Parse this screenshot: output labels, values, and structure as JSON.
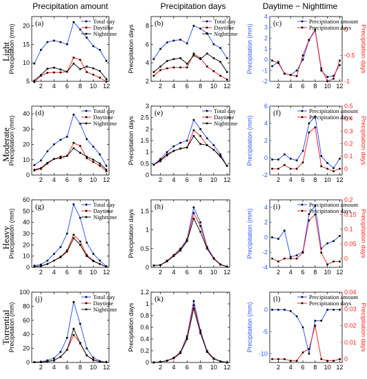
{
  "column_titles": [
    "Precipitation amount",
    "Precipitation days",
    "Daytime − Nighttime"
  ],
  "row_labels": [
    "Light",
    "Moderate",
    "Heavy",
    "Torrential"
  ],
  "colors": {
    "total": "#3355ff",
    "day": "#ff2222",
    "night": "#111111"
  },
  "chart_data": [
    {
      "id": "a",
      "label": "(a)",
      "type": "line",
      "ylabel": "Precipitation (mm)",
      "ylim": [
        5,
        22.5
      ],
      "yticks": [
        5,
        10,
        15,
        20
      ],
      "xticks": [
        2,
        4,
        6,
        8,
        10,
        12
      ],
      "legend": [
        "Total day",
        "Daytime",
        "Nighttime"
      ],
      "series": [
        {
          "name": "Total day",
          "key": "total",
          "values": [
            9.8,
            13.5,
            15.6,
            16.0,
            15.6,
            15.0,
            21.0,
            19.0,
            16.8,
            14.5,
            13.5,
            10.5
          ]
        },
        {
          "name": "Daytime",
          "key": "day",
          "values": [
            4.8,
            6.5,
            7.3,
            7.4,
            7.4,
            7.6,
            11.4,
            10.8,
            7.5,
            6.8,
            6.0,
            4.9
          ]
        },
        {
          "name": "Nighttime",
          "key": "night",
          "values": [
            5.2,
            6.7,
            8.4,
            8.7,
            8.2,
            7.6,
            9.8,
            8.3,
            9.0,
            8.5,
            7.8,
            5.6
          ]
        }
      ]
    },
    {
      "id": "b",
      "label": "(b)",
      "type": "line",
      "ylabel": "Precipitation days",
      "ylim": [
        2,
        9
      ],
      "yticks": [
        2,
        4,
        6,
        8
      ],
      "xticks": [
        2,
        4,
        6,
        8,
        10,
        12
      ],
      "legend": [
        "Total day",
        "Daytime",
        "Nighttime"
      ],
      "series": [
        {
          "name": "Total day",
          "key": "total",
          "values": [
            4.4,
            5.5,
            6.2,
            6.4,
            6.5,
            6.1,
            8.0,
            7.7,
            7.2,
            6.0,
            5.6,
            4.5
          ]
        },
        {
          "name": "Daytime",
          "key": "day",
          "values": [
            2.6,
            3.2,
            3.4,
            3.5,
            3.5,
            3.5,
            5.0,
            4.5,
            3.6,
            3.1,
            2.6,
            2.2
          ]
        },
        {
          "name": "Nighttime",
          "key": "night",
          "values": [
            3.0,
            3.6,
            4.2,
            4.4,
            4.5,
            3.9,
            4.8,
            4.4,
            5.0,
            4.5,
            4.1,
            3.0
          ]
        }
      ]
    },
    {
      "id": "c",
      "label": "(c)",
      "type": "line",
      "dual": true,
      "ylabel": "Precipitation (mm)",
      "ylabel2": "Precipitation days",
      "ylim": [
        -2,
        4
      ],
      "yticks": [
        -2,
        -1,
        0,
        1,
        2,
        3,
        4
      ],
      "ylim2": [
        -1,
        0.25
      ],
      "yticks2": [
        -1,
        -0.5,
        0
      ],
      "xticks": [
        2,
        4,
        6,
        8,
        10,
        12
      ],
      "legend": [
        "Precipitation amount",
        "Precipitation days"
      ],
      "series": [
        {
          "name": "Precipitation amount",
          "key": "total",
          "axis": "left",
          "values": [
            -0.6,
            -0.2,
            -1.3,
            -1.4,
            -1.0,
            0.0,
            1.8,
            2.7,
            -1.0,
            -1.6,
            -1.5,
            -0.5
          ]
        },
        {
          "name": "Precipitation days",
          "key": "day",
          "axis": "right",
          "values": [
            -0.6,
            -0.65,
            -0.85,
            -0.88,
            -0.9,
            -0.5,
            -0.2,
            0.0,
            -0.75,
            -1.0,
            -0.95,
            -0.6
          ]
        }
      ]
    },
    {
      "id": "d",
      "label": "(d)",
      "type": "line",
      "ylabel": "Precipitation (mm)",
      "ylim": [
        0,
        45
      ],
      "yticks": [
        0,
        10,
        20,
        30,
        40
      ],
      "xticks": [
        2,
        4,
        6,
        8,
        10,
        12
      ],
      "legend": [
        "Total day",
        "Daytime",
        "Nighttime"
      ],
      "series": [
        {
          "name": "Total day",
          "key": "total",
          "values": [
            6.5,
            9.5,
            15.5,
            20.0,
            23.0,
            25.0,
            39.5,
            33.5,
            23.5,
            18.5,
            13.5,
            6.0
          ]
        },
        {
          "name": "Daytime",
          "key": "day",
          "values": [
            3.0,
            4.0,
            7.5,
            10.5,
            12.0,
            12.5,
            21.0,
            19.0,
            11.0,
            8.5,
            6.0,
            2.5
          ]
        },
        {
          "name": "Nighttime",
          "key": "night",
          "values": [
            3.5,
            4.5,
            8.0,
            10.5,
            11.0,
            12.5,
            17.5,
            14.5,
            12.0,
            10.0,
            7.5,
            3.5
          ]
        }
      ]
    },
    {
      "id": "e",
      "label": "(e)",
      "type": "line",
      "ylabel": "Precipitation days",
      "ylim": [
        0,
        3
      ],
      "yticks": [
        0,
        0.5,
        1,
        1.5,
        2,
        2.5,
        3
      ],
      "xticks": [
        2,
        4,
        6,
        8,
        10,
        12
      ],
      "legend": [
        "Total day",
        "Daytime",
        "Nighttime"
      ],
      "series": [
        {
          "name": "Total day",
          "key": "total",
          "values": [
            0.45,
            0.7,
            1.0,
            1.25,
            1.4,
            1.5,
            2.4,
            2.0,
            1.6,
            1.3,
            0.9,
            0.4
          ]
        },
        {
          "name": "Daytime",
          "key": "day",
          "values": [
            0.45,
            0.6,
            0.85,
            1.05,
            1.15,
            1.2,
            1.95,
            1.7,
            1.3,
            1.1,
            0.85,
            0.4
          ]
        },
        {
          "name": "Nighttime",
          "key": "night",
          "values": [
            0.45,
            0.65,
            0.9,
            1.05,
            1.15,
            1.2,
            1.7,
            1.35,
            1.3,
            1.1,
            0.8,
            0.4
          ]
        }
      ]
    },
    {
      "id": "f",
      "label": "(f)",
      "type": "line",
      "dual": true,
      "ylabel": "Precipitation (mm)",
      "ylabel2": "Precipitation days",
      "ylim": [
        -2,
        6
      ],
      "yticks": [
        -2,
        0,
        2,
        4,
        6
      ],
      "ylim2": [
        -0.05,
        0.5
      ],
      "yticks2": [
        0,
        0.1,
        0.2,
        0.3,
        0.4,
        0.5
      ],
      "xticks": [
        2,
        4,
        6,
        8,
        10,
        12
      ],
      "legend": [
        "Precipitation amount",
        "Precipitation days"
      ],
      "series": [
        {
          "name": "Precipitation amount",
          "key": "total",
          "axis": "left",
          "values": [
            -0.2,
            -0.2,
            0.4,
            -0.1,
            -0.3,
            0.8,
            4.0,
            4.8,
            0.2,
            -0.6,
            -1.2,
            -0.1
          ]
        },
        {
          "name": "Precipitation days",
          "key": "day",
          "axis": "right",
          "values": [
            0.0,
            0.0,
            0.03,
            0.0,
            0.0,
            0.05,
            0.29,
            0.33,
            0.02,
            0.0,
            -0.02,
            0.0
          ]
        }
      ]
    },
    {
      "id": "g",
      "label": "(g)",
      "type": "line",
      "ylabel": "Precipitation (mm)",
      "ylim": [
        0,
        60
      ],
      "yticks": [
        0,
        10,
        20,
        30,
        40,
        50,
        60
      ],
      "xticks": [
        2,
        4,
        6,
        8,
        10,
        12
      ],
      "legend": [
        "Total day",
        "Daytime",
        "Nighttime"
      ],
      "series": [
        {
          "name": "Total day",
          "key": "total",
          "values": [
            1.5,
            2.5,
            6.0,
            12.0,
            18.0,
            30.0,
            56.0,
            44.0,
            22.0,
            12.0,
            6.0,
            1.0
          ]
        },
        {
          "name": "Daytime",
          "key": "day",
          "values": [
            0.8,
            1.2,
            3.0,
            6.0,
            9.5,
            15.0,
            29.0,
            23.0,
            11.0,
            6.0,
            3.0,
            0.5
          ]
        },
        {
          "name": "Nighttime",
          "key": "night",
          "values": [
            0.8,
            1.2,
            3.0,
            6.0,
            9.0,
            14.0,
            26.0,
            20.0,
            10.0,
            5.5,
            3.0,
            0.5
          ]
        }
      ]
    },
    {
      "id": "h",
      "label": "(h)",
      "type": "line",
      "ylabel": "Precipitation days",
      "ylim": [
        0,
        1.8
      ],
      "yticks": [
        0,
        0.5,
        1,
        1.5
      ],
      "xticks": [
        2,
        4,
        6,
        8,
        10,
        12
      ],
      "legend": [],
      "series": [
        {
          "name": "Total day",
          "key": "total",
          "values": [
            0.05,
            0.06,
            0.18,
            0.33,
            0.5,
            0.75,
            1.6,
            1.2,
            0.55,
            0.25,
            0.08,
            0.02
          ]
        },
        {
          "name": "Daytime",
          "key": "day",
          "values": [
            0.05,
            0.06,
            0.17,
            0.32,
            0.48,
            0.72,
            1.45,
            1.1,
            0.52,
            0.24,
            0.08,
            0.02
          ]
        },
        {
          "name": "Nighttime",
          "key": "night",
          "values": [
            0.05,
            0.06,
            0.16,
            0.3,
            0.45,
            0.7,
            1.3,
            0.95,
            0.5,
            0.23,
            0.07,
            0.02
          ]
        }
      ]
    },
    {
      "id": "i",
      "label": "(i)",
      "type": "line",
      "dual": true,
      "ylabel": "Precipitation (mm)",
      "ylabel2": "Precipitation days",
      "ylim": [
        -4,
        5
      ],
      "yticks": [
        -4,
        -2,
        0,
        2,
        4
      ],
      "ylim2": [
        -0.03,
        0.2
      ],
      "yticks2": [
        0,
        0.05,
        0.1,
        0.15,
        0.2
      ],
      "xticks": [
        2,
        4,
        6,
        8,
        10,
        12
      ],
      "legend": [
        "Precipitation amount",
        "Precipitation days"
      ],
      "series": [
        {
          "name": "Precipitation amount",
          "key": "total",
          "axis": "left",
          "values": [
            0.0,
            -0.2,
            0.9,
            -2.6,
            -2.4,
            -1.9,
            3.1,
            4.2,
            -1.5,
            -0.8,
            -0.5,
            0.2
          ]
        },
        {
          "name": "Precipitation days",
          "key": "day",
          "axis": "right",
          "values": [
            0.0,
            -0.01,
            0.0,
            0.0,
            0.0,
            0.02,
            0.13,
            0.15,
            0.02,
            -0.02,
            -0.01,
            -0.01
          ]
        }
      ]
    },
    {
      "id": "j",
      "label": "(j)",
      "type": "line",
      "ylabel": "Precipitation (mm)",
      "ylim": [
        0,
        100
      ],
      "yticks": [
        0,
        20,
        40,
        60,
        80,
        100
      ],
      "xticks": [
        2,
        4,
        6,
        8,
        10,
        12
      ],
      "legend": [
        "Total day",
        "Daytime",
        "Nighttime"
      ],
      "series": [
        {
          "name": "Total day",
          "key": "total",
          "values": [
            0.5,
            1.0,
            3.0,
            6.0,
            15.0,
            35.0,
            86.0,
            55.0,
            20.0,
            7.0,
            2.0,
            0.5
          ]
        },
        {
          "name": "Daytime",
          "key": "day",
          "values": [
            0.3,
            0.5,
            1.5,
            3.0,
            8.0,
            18.0,
            39.0,
            28.0,
            10.0,
            4.0,
            1.0,
            0.3
          ]
        },
        {
          "name": "Nighttime",
          "key": "night",
          "values": [
            0.3,
            0.5,
            1.5,
            3.0,
            8.0,
            18.0,
            48.0,
            27.0,
            10.0,
            3.5,
            1.0,
            0.3
          ]
        }
      ]
    },
    {
      "id": "k",
      "label": "(k)",
      "type": "line",
      "ylabel": "Precipitation days",
      "ylim": [
        0,
        1.2
      ],
      "yticks": [
        0,
        0.2,
        0.4,
        0.6,
        0.8,
        1,
        1.2
      ],
      "xticks": [
        2,
        4,
        6,
        8,
        10,
        12
      ],
      "legend": [],
      "series": [
        {
          "name": "Total day",
          "key": "total",
          "values": [
            0.0,
            0.01,
            0.03,
            0.08,
            0.18,
            0.45,
            1.05,
            0.55,
            0.2,
            0.07,
            0.02,
            0.0
          ]
        },
        {
          "name": "Daytime",
          "key": "day",
          "values": [
            0.0,
            0.01,
            0.03,
            0.08,
            0.17,
            0.43,
            0.98,
            0.52,
            0.19,
            0.07,
            0.02,
            0.0
          ]
        },
        {
          "name": "Nighttime",
          "key": "night",
          "values": [
            0.0,
            0.01,
            0.03,
            0.07,
            0.16,
            0.4,
            0.92,
            0.5,
            0.18,
            0.06,
            0.02,
            0.0
          ]
        }
      ]
    },
    {
      "id": "l",
      "label": "(l)",
      "type": "line",
      "dual": true,
      "ylabel": "Precipitation (mm)",
      "ylabel2": "Precipitation days",
      "ylim": [
        -12,
        4
      ],
      "yticks": [
        -10,
        -5,
        0
      ],
      "ylim2": [
        -0.002,
        0.04
      ],
      "yticks2": [
        0,
        0.01,
        0.02,
        0.03,
        0.04
      ],
      "xticks": [
        2,
        4,
        6,
        8,
        10,
        12
      ],
      "legend": [
        "Precipitation amount",
        "Precipitation days"
      ],
      "series": [
        {
          "name": "Precipitation amount",
          "key": "total",
          "axis": "left",
          "values": [
            0.0,
            0.0,
            0.0,
            -0.3,
            -1.5,
            -4.0,
            -10.0,
            -2.5,
            -2.5,
            0.0,
            0.0,
            0.0
          ]
        },
        {
          "name": "Precipitation days",
          "key": "day",
          "axis": "right",
          "values": [
            0.0,
            0.0,
            0.0,
            -0.001,
            -0.001,
            0.004,
            0.006,
            0.02,
            0.0,
            -0.001,
            -0.001,
            0.0
          ]
        }
      ]
    }
  ]
}
